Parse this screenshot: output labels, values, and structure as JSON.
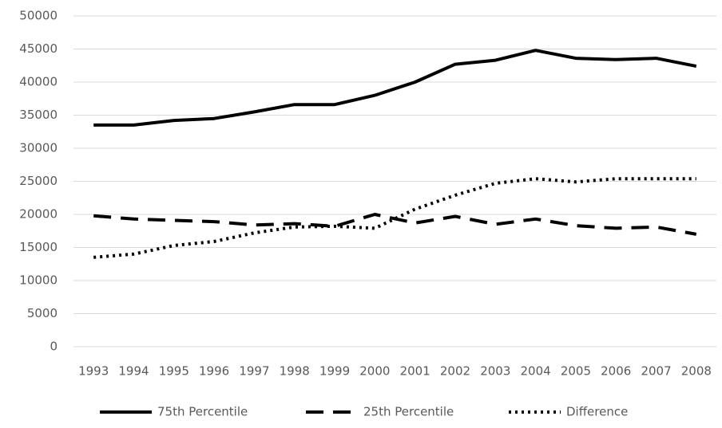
{
  "chart_data": {
    "type": "line",
    "categories": [
      "1993",
      "1994",
      "1995",
      "1996",
      "1997",
      "1998",
      "1999",
      "2000",
      "2001",
      "2002",
      "2003",
      "2004",
      "2005",
      "2006",
      "2007",
      "2008"
    ],
    "series": [
      {
        "name": "75th Percentile",
        "color": "#000000",
        "style": "solid",
        "values": [
          33500,
          33500,
          34200,
          34500,
          35500,
          36600,
          36600,
          38000,
          40000,
          42700,
          43300,
          44800,
          43600,
          43400,
          43600,
          42400
        ]
      },
      {
        "name": "25th Percentile",
        "color": "#000000",
        "style": "dashed",
        "values": [
          19800,
          19300,
          19100,
          18900,
          18400,
          18600,
          18200,
          20000,
          18700,
          19700,
          18500,
          19300,
          18300,
          17900,
          18100,
          17000
        ]
      },
      {
        "name": "Difference",
        "color": "#000000",
        "style": "dotted",
        "values": [
          13500,
          14000,
          15300,
          15900,
          17200,
          18100,
          18200,
          17900,
          20800,
          22900,
          24700,
          25400,
          24900,
          25400,
          25400,
          25400
        ]
      }
    ],
    "ylim": [
      0,
      50000
    ],
    "yticks": [
      0,
      5000,
      10000,
      15000,
      20000,
      25000,
      30000,
      35000,
      40000,
      45000,
      50000
    ],
    "grid": true,
    "legend": "bottom"
  }
}
